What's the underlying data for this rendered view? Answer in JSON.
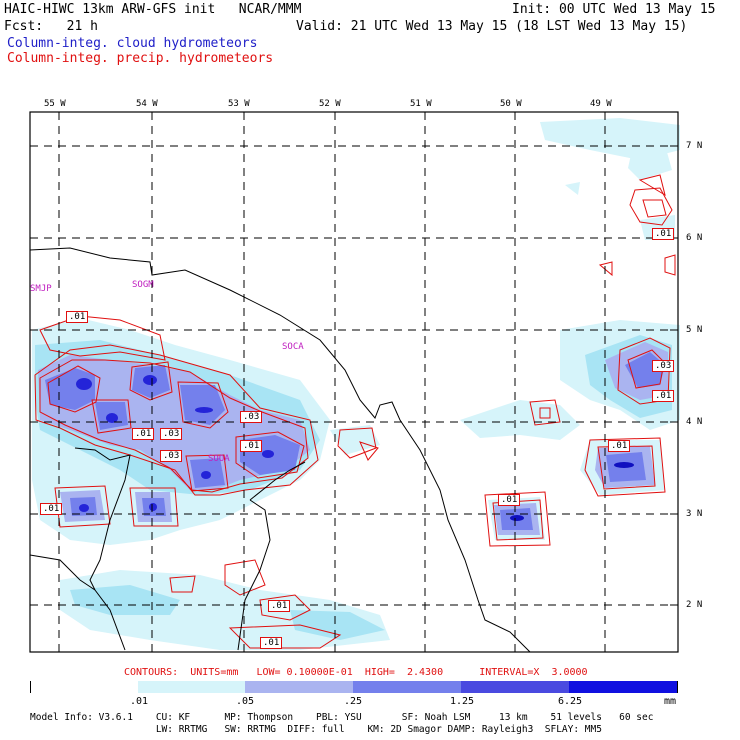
{
  "header": {
    "title_left": "HAIC-HIWC 13km ARW-GFS init   NCAR/MMM",
    "init": "Init: 00 UTC Wed 13 May 15",
    "fcst": "Fcst:   21 h",
    "valid": "Valid: 21 UTC Wed 13 May 15 (18 LST Wed 13 May 15)",
    "legend_cloud": "Column-integ. cloud hydrometeors",
    "legend_precip": "Column-integ. precip. hydrometeors"
  },
  "map": {
    "lon_labels": [
      "55 W",
      "54 W",
      "53 W",
      "52 W",
      "51 W",
      "50 W",
      "49 W"
    ],
    "lat_labels": [
      "7 N",
      "6 N",
      "5 N",
      "4 N",
      "3 N",
      "2 N"
    ],
    "station_labels": [
      "SMJP",
      "SOGM",
      "SOCA",
      "SOOA"
    ],
    "contour_labels": [
      ".01",
      ".01",
      ".03",
      ".01",
      ".01",
      ".03",
      ".03",
      ".01",
      ".01",
      ".01",
      ".01",
      ".01",
      ".03",
      ".01",
      ".01",
      ".01",
      ".01"
    ],
    "colors": {
      "cloud_light": "#d6f4fa",
      "cloud_mid": "#a8e4f4",
      "cloud_lav": "#aab4f0",
      "cloud_med": "#7480ec",
      "cloud_deep": "#4a4ae0",
      "precip": "#e01010",
      "grid": "#000000"
    }
  },
  "contour_info": "CONTOURS:  UNITS=mm   LOW= 0.10000E-01  HIGH=  2.4300      INTERVAL=X  3.0000",
  "colorbar": {
    "labels": [
      ".01",
      ".05",
      ".25",
      "1.25",
      "6.25",
      "mm"
    ],
    "colors": [
      "#ffffff",
      "#d6f4fa",
      "#aab4f0",
      "#7480ec",
      "#4a4ae0",
      "#1010e0"
    ]
  },
  "model_info": {
    "line1": "Model Info: V3.6.1    CU: KF      MP: Thompson    PBL: YSU       SF: Noah LSM     13 km    51 levels   60 sec",
    "line2": "                      LW: RRTMG   SW: RRTMG  DIFF: full    KM: 2D Smagor DAMP: Rayleigh3  SFLAY: MM5"
  }
}
